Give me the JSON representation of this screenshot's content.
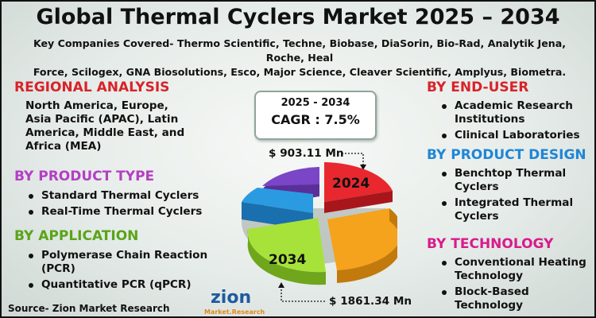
{
  "title": "Global Thermal Cyclers Market 2025 – 2034",
  "key_companies_line1": "Key Companies Covered- Thermo Scientific, Techne, Biobase, DiaSorin, Bio-Rad, Analytik Jena, Roche, Heal",
  "key_companies_line2": "Force, Scilogex, GNA Biosolutions, Esco, Major Science, Cleaver Scientific, Amplyus, Biometra.",
  "regional": {
    "heading": "REGIONAL ANALYSIS",
    "lines": [
      "North America, Europe,",
      "Asia Pacific (APAC), Latin",
      "America, Middle East, and",
      "Africa (MEA)"
    ]
  },
  "product_type": {
    "heading": "BY PRODUCT TYPE",
    "items": [
      "Standard Thermal Cyclers",
      "Real-Time Thermal Cyclers"
    ]
  },
  "application": {
    "heading": "BY APPLICATION",
    "items": [
      [
        "Polymerase Chain Reaction",
        "(PCR)"
      ],
      [
        "Quantitative PCR (qPCR)"
      ]
    ]
  },
  "end_user": {
    "heading": "BY END-USER",
    "items": [
      [
        "Academic Research",
        "Institutions"
      ],
      [
        "Clinical Laboratories"
      ]
    ]
  },
  "product_design": {
    "heading": "BY PRODUCT DESIGN",
    "items": [
      [
        "Benchtop Thermal",
        "Cyclers"
      ],
      [
        "Integrated Thermal",
        "Cyclers"
      ]
    ]
  },
  "technology": {
    "heading": "BY TECHNOLOGY",
    "items": [
      [
        "Conventional Heating",
        "Technology"
      ],
      [
        "Block-Based",
        "Technology"
      ]
    ]
  },
  "cagr": {
    "years": "2025 - 2034",
    "value": "CAGR : 7.5%"
  },
  "market_2024": {
    "label": "$ 903.11 Mn",
    "year": "2024"
  },
  "market_2034": {
    "label": "$ 1861.34 Mn",
    "year": "2034"
  },
  "source": "Source- Zion Market Research",
  "logo": {
    "name": "zion",
    "sub": "Market.Research"
  },
  "colors": {
    "red": "#d8232a",
    "purple": "#b53ec4",
    "green": "#5aa418",
    "blue": "#1f86d6",
    "magenta": "#d81b8c",
    "pie_red": "#e8282e",
    "pie_orange": "#f5a21c",
    "pie_green": "#a7e23a",
    "pie_blue": "#2a9be0",
    "pie_purple": "#7a45c6"
  }
}
